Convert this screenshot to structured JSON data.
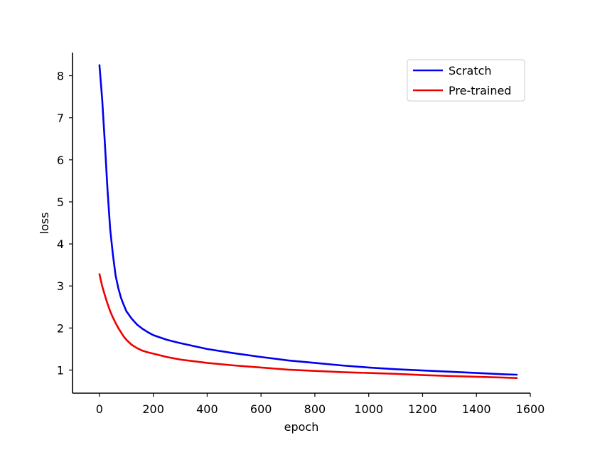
{
  "chart_data": {
    "type": "line",
    "title": "",
    "xlabel": "epoch",
    "ylabel": "loss",
    "xlim": [
      -100,
      1600
    ],
    "ylim": [
      0.45,
      8.55
    ],
    "xticks": [
      "0",
      "200",
      "400",
      "600",
      "800",
      "1000",
      "1200",
      "1400",
      "1600"
    ],
    "yticks": [
      "1",
      "2",
      "3",
      "4",
      "5",
      "6",
      "7",
      "8"
    ],
    "grid": false,
    "legend_position": "top-right",
    "series": [
      {
        "name": "Scratch",
        "color": "#0000ee",
        "x": [
          0,
          10,
          20,
          30,
          40,
          50,
          60,
          70,
          80,
          90,
          100,
          120,
          140,
          160,
          180,
          200,
          250,
          300,
          400,
          500,
          600,
          700,
          800,
          900,
          1000,
          1100,
          1200,
          1300,
          1400,
          1500,
          1550
        ],
        "y": [
          8.25,
          7.45,
          6.4,
          5.3,
          4.35,
          3.75,
          3.25,
          2.95,
          2.72,
          2.55,
          2.4,
          2.22,
          2.08,
          1.98,
          1.9,
          1.83,
          1.72,
          1.64,
          1.5,
          1.4,
          1.31,
          1.23,
          1.17,
          1.11,
          1.06,
          1.02,
          0.99,
          0.96,
          0.93,
          0.9,
          0.89
        ]
      },
      {
        "name": "Pre-trained",
        "color": "#ee0000",
        "x": [
          0,
          10,
          20,
          30,
          40,
          50,
          60,
          70,
          80,
          90,
          100,
          120,
          140,
          160,
          180,
          200,
          250,
          300,
          400,
          500,
          600,
          700,
          800,
          900,
          1000,
          1100,
          1200,
          1300,
          1400,
          1500,
          1550
        ],
        "y": [
          3.28,
          3.0,
          2.78,
          2.58,
          2.4,
          2.25,
          2.12,
          2.0,
          1.9,
          1.8,
          1.72,
          1.6,
          1.52,
          1.46,
          1.42,
          1.39,
          1.31,
          1.25,
          1.17,
          1.11,
          1.06,
          1.01,
          0.98,
          0.95,
          0.93,
          0.91,
          0.88,
          0.86,
          0.84,
          0.82,
          0.81
        ]
      }
    ]
  }
}
